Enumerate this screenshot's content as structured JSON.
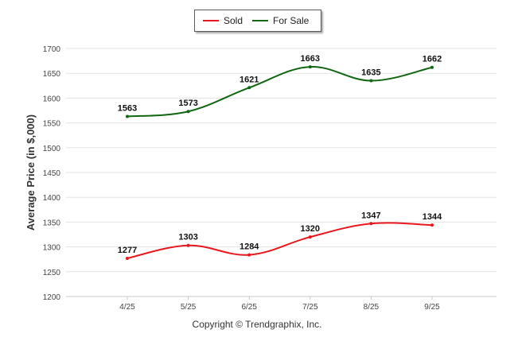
{
  "chart_data": {
    "type": "line",
    "title": "",
    "xlabel": "",
    "ylabel": "Average Price (in $,000)",
    "categories": [
      "4/25",
      "5/25",
      "6/25",
      "7/25",
      "8/25",
      "9/25"
    ],
    "ylim": [
      1200,
      1700
    ],
    "yticks": [
      1200,
      1250,
      1300,
      1350,
      1400,
      1450,
      1500,
      1550,
      1600,
      1650,
      1700
    ],
    "grid": true,
    "legend": "top-center",
    "series": [
      {
        "name": "Sold",
        "color": "#e8171e",
        "values": [
          1277,
          1303,
          1284,
          1320,
          1347,
          1344
        ]
      },
      {
        "name": "For Sale",
        "color": "#116611",
        "values": [
          1563,
          1573,
          1621,
          1663,
          1635,
          1662
        ]
      }
    ]
  },
  "legend": {
    "sold_label": "Sold",
    "for_sale_label": "For Sale"
  },
  "footer": {
    "copyright": "Copyright © Trendgraphix, Inc."
  }
}
